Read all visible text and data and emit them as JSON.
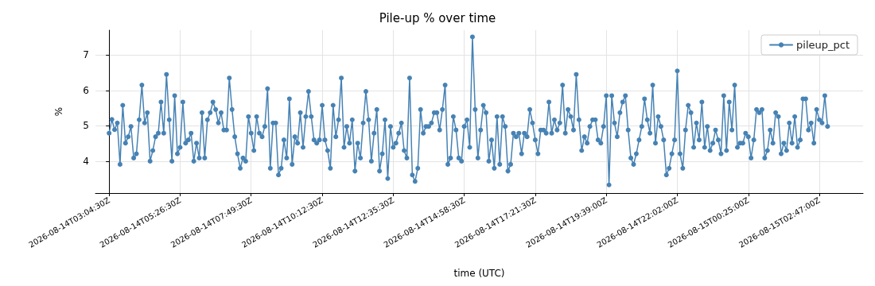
{
  "chart_data": {
    "type": "line",
    "title": "Pile-up % over time",
    "xlabel": "time (UTC)",
    "ylabel": "%",
    "categories": [
      "2026-08-14T03:04:30Z",
      null,
      null,
      null,
      null,
      null,
      null,
      null,
      null,
      null,
      null,
      null,
      null,
      null,
      null,
      null,
      null,
      null,
      null,
      null,
      null,
      null,
      null,
      null,
      null,
      null,
      "2026-08-14T05:26:30Z",
      null,
      null,
      null,
      null,
      null,
      null,
      null,
      null,
      null,
      null,
      null,
      null,
      null,
      null,
      null,
      null,
      null,
      null,
      null,
      null,
      null,
      null,
      null,
      null,
      null,
      "2026-08-14T07:49:30Z",
      null,
      null,
      null,
      null,
      null,
      null,
      null,
      null,
      null,
      null,
      null,
      null,
      null,
      null,
      null,
      null,
      null,
      null,
      null,
      null,
      null,
      null,
      null,
      null,
      null,
      "2026-08-14T10:12:30Z",
      null,
      null,
      null,
      null,
      null,
      null,
      null,
      null,
      null,
      null,
      null,
      null,
      null,
      null,
      null,
      null,
      null,
      null,
      null,
      null,
      null,
      null,
      null,
      null,
      null,
      "2026-08-14T12:35:30Z",
      null,
      null,
      null,
      null,
      null,
      null,
      null,
      null,
      null,
      null,
      null,
      null,
      null,
      null,
      null,
      null,
      null,
      null,
      null,
      null,
      null,
      null,
      null,
      null,
      null,
      "2026-08-14T14:58:30Z",
      null,
      null,
      null,
      null,
      null,
      null,
      null,
      null,
      null,
      null,
      null,
      null,
      null,
      null,
      null,
      null,
      null,
      null,
      null,
      null,
      null,
      null,
      null,
      null,
      null,
      "2026-08-14T17:21:30Z",
      null,
      null,
      null,
      null,
      null,
      null,
      null,
      null,
      null,
      null,
      null,
      null,
      null,
      null,
      null,
      null,
      null,
      null,
      null,
      null,
      null,
      null,
      null,
      null,
      null,
      "2026-08-14T19:39:00Z",
      null,
      null,
      null,
      null,
      null,
      null,
      null,
      null,
      null,
      null,
      null,
      null,
      null,
      null,
      null,
      null,
      null,
      null,
      null,
      null,
      null,
      null,
      null,
      null,
      null,
      "2026-08-14T22:02:00Z",
      null,
      null,
      null,
      null,
      null,
      null,
      null,
      null,
      null,
      null,
      null,
      null,
      null,
      null,
      null,
      null,
      null,
      null,
      null,
      null,
      null,
      null,
      null,
      null,
      null,
      "2026-08-15T00:25:00Z",
      null,
      null,
      null,
      null,
      null,
      null,
      null,
      null,
      null,
      null,
      null,
      null,
      null,
      null,
      null,
      null,
      null,
      null,
      null,
      null,
      null,
      null,
      null,
      null,
      null,
      "2026-08-15T02:47:00Z",
      null,
      null,
      null
    ],
    "series": [
      {
        "name": "pileup_pct",
        "color": "#4682b4",
        "values": [
          4.79,
          5.18,
          4.89,
          5.08,
          3.91,
          5.58,
          4.51,
          4.69,
          4.98,
          4.09,
          4.21,
          5.17,
          6.15,
          5.08,
          5.37,
          4.0,
          4.3,
          4.69,
          4.79,
          5.67,
          4.79,
          6.45,
          5.17,
          4.0,
          5.85,
          4.21,
          4.39,
          5.67,
          4.51,
          4.6,
          4.79,
          4.0,
          4.51,
          4.09,
          5.37,
          4.09,
          5.17,
          5.37,
          5.67,
          5.46,
          5.08,
          5.37,
          4.88,
          4.88,
          6.35,
          5.46,
          4.69,
          4.21,
          3.8,
          4.09,
          4.0,
          5.26,
          4.79,
          4.3,
          5.26,
          4.79,
          4.69,
          4.98,
          6.05,
          3.8,
          5.08,
          5.08,
          3.61,
          3.8,
          4.6,
          4.09,
          5.76,
          3.91,
          4.69,
          4.51,
          5.37,
          4.39,
          5.26,
          5.97,
          5.26,
          4.6,
          4.51,
          4.6,
          5.58,
          4.6,
          4.3,
          3.8,
          5.58,
          4.69,
          5.17,
          6.35,
          4.39,
          4.98,
          4.51,
          5.17,
          3.72,
          4.51,
          4.09,
          5.08,
          5.97,
          5.17,
          4.0,
          4.79,
          5.46,
          3.72,
          4.21,
          5.17,
          3.51,
          4.98,
          4.39,
          4.51,
          4.79,
          5.08,
          4.3,
          4.09,
          6.35,
          3.61,
          3.43,
          3.8,
          5.46,
          4.79,
          4.98,
          4.98,
          5.08,
          5.37,
          5.37,
          4.88,
          5.46,
          6.15,
          3.91,
          4.09,
          5.26,
          4.88,
          4.09,
          4.0,
          4.98,
          5.17,
          4.39,
          7.51,
          5.46,
          4.09,
          4.88,
          5.58,
          5.37,
          4.0,
          4.6,
          3.8,
          5.26,
          3.91,
          5.26,
          4.98,
          3.72,
          3.91,
          4.79,
          4.69,
          4.79,
          4.21,
          4.79,
          4.69,
          5.46,
          5.08,
          4.6,
          4.21,
          4.88,
          4.88,
          4.79,
          5.67,
          4.79,
          5.17,
          4.88,
          5.08,
          6.15,
          4.79,
          5.46,
          5.26,
          4.88,
          6.45,
          5.17,
          4.3,
          4.69,
          4.51,
          4.98,
          5.17,
          5.17,
          4.6,
          4.51,
          4.98,
          5.85,
          3.33,
          5.85,
          5.08,
          4.69,
          5.37,
          5.67,
          5.85,
          4.88,
          4.09,
          3.91,
          4.21,
          4.6,
          4.98,
          5.76,
          5.17,
          4.79,
          6.15,
          4.51,
          5.26,
          4.98,
          4.6,
          3.61,
          3.8,
          4.21,
          4.6,
          6.55,
          4.21,
          3.8,
          4.88,
          5.58,
          5.37,
          4.39,
          5.08,
          4.6,
          5.67,
          4.39,
          4.98,
          4.3,
          4.51,
          4.88,
          4.6,
          4.21,
          5.85,
          4.3,
          5.67,
          4.88,
          6.15,
          4.39,
          4.51,
          4.51,
          4.79,
          4.69,
          4.09,
          4.6,
          5.46,
          5.37,
          5.46,
          4.09,
          4.3,
          4.88,
          4.51,
          5.37,
          5.26,
          4.21,
          4.51,
          4.3,
          5.08,
          4.51,
          5.26,
          4.39,
          4.6,
          5.76,
          5.76,
          4.88,
          5.08,
          4.51,
          5.46,
          5.17,
          5.08,
          5.85,
          4.98
        ]
      }
    ],
    "ylim": [
      3.1,
      7.7
    ],
    "yticks": [
      4,
      5,
      6,
      7
    ],
    "grid": true,
    "legend": "top right",
    "marker": "circle",
    "line_style": "solid"
  }
}
